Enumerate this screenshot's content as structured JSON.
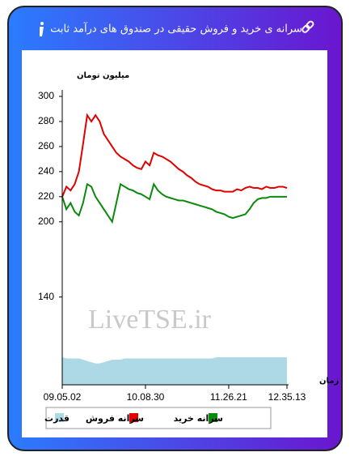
{
  "chart_data": {
    "type": "line",
    "title": "سرانه ی خرید و فروش حقیقی در صندوق های درآمد ثابت",
    "y_label": "میلیون تومان",
    "x_label": "زمان",
    "watermark": "LiveTSE.ir",
    "categories": [
      "09.05.02",
      null,
      null,
      null,
      null,
      null,
      null,
      null,
      null,
      null,
      null,
      null,
      null,
      null,
      null,
      null,
      null,
      null,
      null,
      null,
      "10.08.30",
      null,
      null,
      null,
      null,
      null,
      null,
      null,
      null,
      null,
      null,
      null,
      null,
      null,
      null,
      null,
      null,
      null,
      null,
      null,
      "11.26.21",
      null,
      null,
      null,
      null,
      null,
      null,
      null,
      null,
      null,
      null,
      null,
      null,
      null,
      "12.35.13"
    ],
    "series": [
      {
        "name": "سرانه خرید",
        "color": "#0a8a0a",
        "values": [
          220,
          210,
          215,
          208,
          205,
          215,
          230,
          228,
          220,
          215,
          210,
          205,
          200,
          215,
          230,
          228,
          226,
          225,
          223,
          222,
          220,
          218,
          230,
          225,
          222,
          220,
          219,
          218,
          217,
          217,
          216,
          215,
          214,
          213,
          212,
          211,
          210,
          208,
          207,
          206,
          204,
          203,
          204,
          205,
          206,
          210,
          215,
          218,
          219,
          219,
          220,
          220,
          220,
          220,
          220
        ]
      },
      {
        "name": "سرانه فروش",
        "color": "#e00000",
        "values": [
          220,
          228,
          225,
          230,
          240,
          262,
          285,
          280,
          285,
          280,
          270,
          265,
          260,
          255,
          252,
          250,
          248,
          245,
          243,
          242,
          248,
          245,
          255,
          253,
          252,
          250,
          248,
          245,
          242,
          240,
          237,
          235,
          232,
          230,
          229,
          228,
          226,
          225,
          225,
          224,
          224,
          224,
          226,
          225,
          227,
          228,
          227,
          227,
          226,
          228,
          227,
          227,
          228,
          228,
          227
        ]
      },
      {
        "name": "قدرت",
        "color": "#add8e6",
        "area": true,
        "values": [
          92,
          91,
          91,
          91,
          91,
          90,
          89,
          88,
          87,
          87,
          88,
          89,
          90,
          90,
          90,
          91,
          91,
          91,
          91,
          91,
          91,
          91,
          91,
          91,
          91,
          91,
          91,
          91,
          91,
          91,
          91,
          91,
          91,
          91,
          91,
          91,
          91,
          92,
          92,
          92,
          92,
          92,
          92,
          92,
          92,
          92,
          92,
          92,
          92,
          92,
          92,
          92,
          92,
          92,
          92
        ]
      }
    ],
    "ylim": [
      70,
      300
    ],
    "yticks": [
      140,
      200,
      220,
      240,
      260,
      280,
      300
    ],
    "grid": false
  }
}
